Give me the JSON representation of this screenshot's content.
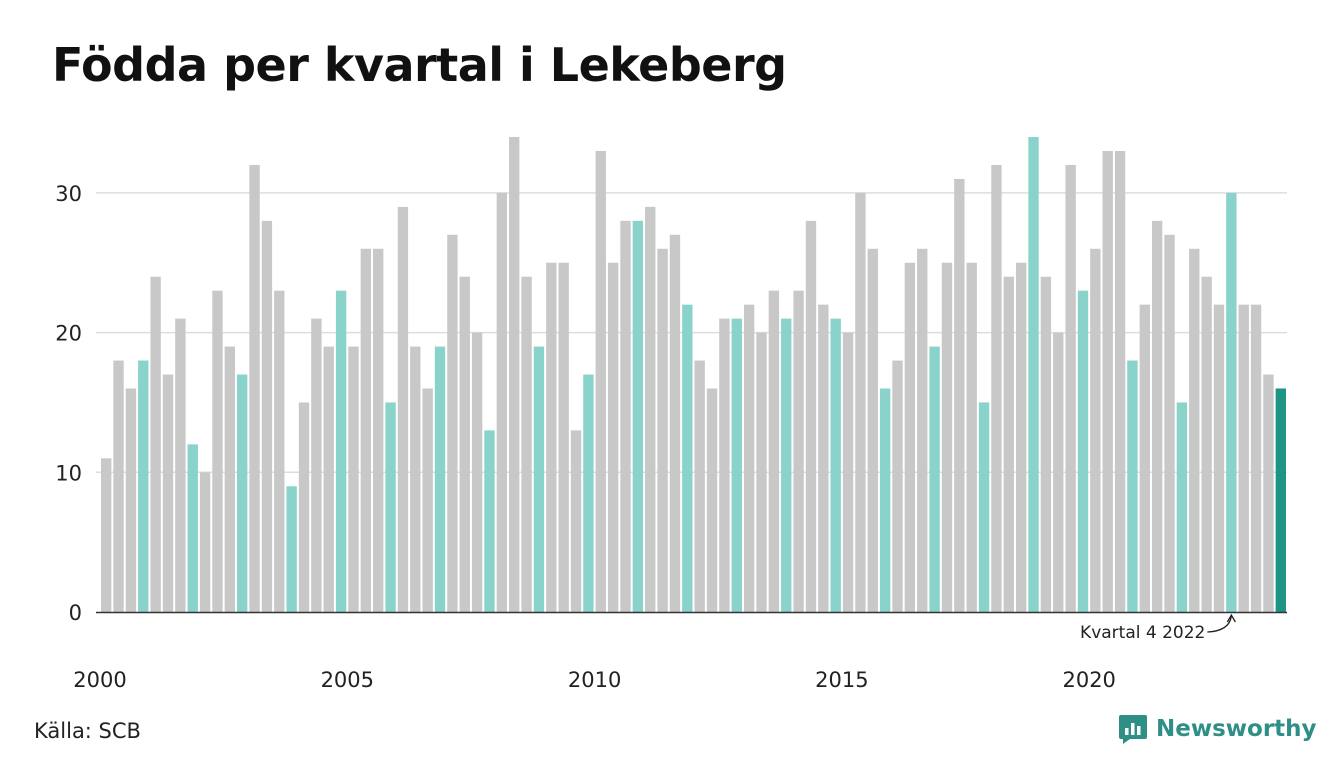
{
  "title": "Födda per kvartal i Lekeberg",
  "source": "Källa: SCB",
  "brand": {
    "name": "Newsworthy",
    "icon": "newsworthy-logo-icon"
  },
  "annotation": {
    "text": "Kvartal 4 2022",
    "target_index": 91
  },
  "colors": {
    "q4": "#8ad3cb",
    "other": "#c8c8c8",
    "latest": "#1e9484",
    "brand": "#2e8f86"
  },
  "chart_data": {
    "type": "bar",
    "x_labels": [
      "2000",
      "2005",
      "2010",
      "2015",
      "2020"
    ],
    "y_ticks": [
      "0",
      "10",
      "20",
      "30"
    ],
    "ylim": [
      0,
      35
    ],
    "grid": true,
    "first_quarter": "2000 Q1",
    "values": [
      11,
      18,
      16,
      18,
      24,
      17,
      21,
      12,
      10,
      23,
      19,
      17,
      32,
      28,
      23,
      9,
      15,
      21,
      19,
      23,
      19,
      26,
      26,
      15,
      29,
      19,
      16,
      19,
      27,
      24,
      20,
      13,
      30,
      34,
      24,
      19,
      25,
      25,
      13,
      17,
      33,
      25,
      28,
      28,
      29,
      26,
      27,
      22,
      18,
      16,
      21,
      21,
      22,
      20,
      23,
      21,
      23,
      28,
      22,
      21,
      20,
      30,
      26,
      16,
      18,
      25,
      26,
      19,
      25,
      31,
      25,
      15,
      32,
      24,
      25,
      34,
      24,
      20,
      32,
      23,
      26,
      33,
      33,
      18,
      22,
      28,
      27,
      15,
      26,
      24,
      22,
      30,
      22,
      22,
      17,
      16
    ]
  }
}
